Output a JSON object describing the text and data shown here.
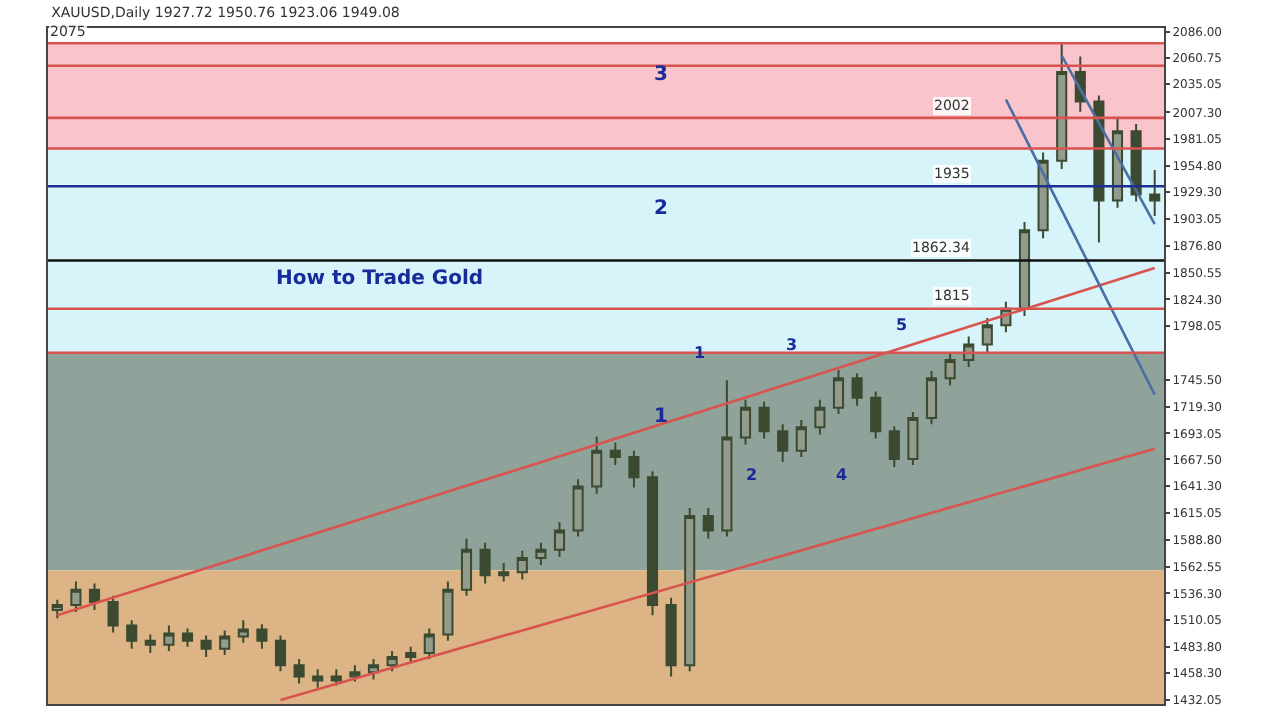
{
  "chart_data": {
    "type": "candlestick",
    "title": "XAUUSD,Daily 1927.72 1950.76 1923.06 1949.08",
    "categories": [
      null,
      null,
      null,
      null,
      null,
      null,
      null,
      null,
      null,
      null,
      null,
      null,
      null,
      null,
      null,
      null,
      null,
      null,
      null,
      null,
      null,
      null,
      null,
      null,
      null,
      null,
      null,
      null,
      null,
      null,
      null,
      null,
      null,
      null,
      null,
      null,
      null,
      null,
      null,
      null,
      null,
      null,
      null,
      null,
      null,
      null,
      null,
      null,
      null,
      null,
      null,
      null,
      null,
      null,
      null,
      null,
      null,
      null,
      null,
      null
    ],
    "ohlc": [
      [
        1520,
        1530,
        1512,
        1525
      ],
      [
        1525,
        1548,
        1518,
        1540
      ],
      [
        1540,
        1546,
        1520,
        1528
      ],
      [
        1528,
        1534,
        1498,
        1505
      ],
      [
        1505,
        1510,
        1482,
        1490
      ],
      [
        1490,
        1496,
        1478,
        1486
      ],
      [
        1486,
        1505,
        1480,
        1497
      ],
      [
        1497,
        1502,
        1484,
        1490
      ],
      [
        1490,
        1495,
        1474,
        1482
      ],
      [
        1482,
        1500,
        1476,
        1494
      ],
      [
        1494,
        1510,
        1488,
        1501
      ],
      [
        1501,
        1506,
        1482,
        1490
      ],
      [
        1490,
        1495,
        1460,
        1466
      ],
      [
        1466,
        1472,
        1448,
        1455
      ],
      [
        1455,
        1462,
        1444,
        1451
      ],
      [
        1451,
        1462,
        1446,
        1455
      ],
      [
        1455,
        1466,
        1450,
        1459
      ],
      [
        1459,
        1472,
        1452,
        1466
      ],
      [
        1466,
        1480,
        1460,
        1474
      ],
      [
        1474,
        1484,
        1468,
        1478
      ],
      [
        1478,
        1502,
        1472,
        1496
      ],
      [
        1496,
        1548,
        1490,
        1540
      ],
      [
        1540,
        1590,
        1534,
        1579
      ],
      [
        1579,
        1586,
        1546,
        1554
      ],
      [
        1554,
        1566,
        1548,
        1557
      ],
      [
        1557,
        1578,
        1550,
        1571
      ],
      [
        1571,
        1586,
        1564,
        1579
      ],
      [
        1579,
        1606,
        1572,
        1598
      ],
      [
        1598,
        1648,
        1592,
        1641
      ],
      [
        1641,
        1690,
        1634,
        1676
      ],
      [
        1676,
        1684,
        1662,
        1670
      ],
      [
        1670,
        1676,
        1640,
        1650
      ],
      [
        1650,
        1656,
        1515,
        1525
      ],
      [
        1525,
        1532,
        1455,
        1466
      ],
      [
        1466,
        1620,
        1460,
        1612
      ],
      [
        1612,
        1620,
        1590,
        1598
      ],
      [
        1598,
        1745,
        1592,
        1689
      ],
      [
        1689,
        1726,
        1682,
        1718
      ],
      [
        1718,
        1724,
        1688,
        1695
      ],
      [
        1695,
        1702,
        1665,
        1676
      ],
      [
        1676,
        1706,
        1670,
        1699
      ],
      [
        1699,
        1726,
        1692,
        1718
      ],
      [
        1718,
        1755,
        1712,
        1747
      ],
      [
        1747,
        1752,
        1720,
        1728
      ],
      [
        1728,
        1734,
        1688,
        1695
      ],
      [
        1695,
        1700,
        1660,
        1668
      ],
      [
        1668,
        1714,
        1662,
        1708
      ],
      [
        1708,
        1754,
        1702,
        1747
      ],
      [
        1747,
        1772,
        1740,
        1765
      ],
      [
        1765,
        1788,
        1758,
        1780
      ],
      [
        1780,
        1806,
        1772,
        1799
      ],
      [
        1799,
        1822,
        1792,
        1815
      ],
      [
        1815,
        1900,
        1808,
        1892
      ],
      [
        1892,
        1968,
        1884,
        1960
      ],
      [
        1960,
        2075,
        1952,
        2047
      ],
      [
        2047,
        2062,
        2008,
        2018
      ],
      [
        2018,
        2024,
        1880,
        1921
      ],
      [
        1921,
        2002,
        1914,
        1989
      ],
      [
        1989,
        1996,
        1920,
        1927
      ],
      [
        1927,
        1951,
        1906,
        1921
      ]
    ],
    "color": "#3b4a30",
    "series": [
      {
        "type": "line",
        "values": [
          1515,
          null,
          null,
          null,
          null,
          null,
          null,
          null,
          null,
          null,
          null,
          null,
          null,
          null,
          null,
          null,
          null,
          null,
          null,
          null,
          null,
          null,
          null,
          null,
          null,
          null,
          null,
          null,
          null,
          null,
          null,
          null,
          null,
          null,
          null,
          null,
          null,
          null,
          null,
          null,
          null,
          null,
          null,
          null,
          null,
          null,
          null,
          null,
          null,
          null,
          null,
          null,
          null,
          null,
          null,
          null,
          null,
          null,
          null,
          1855
        ],
        "color": "#d9534f"
      },
      {
        "type": "line",
        "values": [
          null,
          null,
          null,
          null,
          null,
          null,
          null,
          null,
          null,
          null,
          null,
          null,
          1432,
          null,
          null,
          null,
          null,
          null,
          null,
          null,
          null,
          null,
          null,
          null,
          null,
          null,
          null,
          null,
          null,
          null,
          null,
          null,
          null,
          null,
          null,
          null,
          null,
          null,
          null,
          null,
          null,
          null,
          null,
          null,
          null,
          null,
          null,
          null,
          null,
          null,
          null,
          null,
          null,
          null,
          null,
          null,
          null,
          null,
          null,
          1678
        ],
        "color": "#d9534f"
      },
      {
        "type": "line",
        "values": [
          null,
          null,
          null,
          null,
          null,
          null,
          null,
          null,
          null,
          null,
          null,
          null,
          null,
          null,
          null,
          null,
          null,
          null,
          null,
          null,
          null,
          null,
          null,
          null,
          null,
          null,
          null,
          null,
          null,
          null,
          null,
          null,
          null,
          null,
          null,
          null,
          null,
          null,
          null,
          null,
          null,
          null,
          null,
          null,
          null,
          null,
          null,
          null,
          null,
          null,
          null,
          2020,
          null,
          null,
          null,
          null,
          null,
          null,
          null,
          1731
        ],
        "color": "#4a6fa5"
      },
      {
        "type": "line",
        "values": [
          null,
          null,
          null,
          null,
          null,
          null,
          null,
          null,
          null,
          null,
          null,
          null,
          null,
          null,
          null,
          null,
          null,
          null,
          null,
          null,
          null,
          null,
          null,
          null,
          null,
          null,
          null,
          null,
          null,
          null,
          null,
          null,
          null,
          null,
          null,
          null,
          null,
          null,
          null,
          null,
          null,
          null,
          null,
          null,
          null,
          null,
          null,
          null,
          null,
          null,
          null,
          null,
          null,
          null,
          2063,
          null,
          null,
          null,
          null,
          1898
        ],
        "color": "#4a6fa5"
      }
    ],
    "ylim": [
      1428,
      2090
    ],
    "yticks": [
      {
        "value": 2086,
        "label": "2086.00"
      },
      {
        "value": 2060.75,
        "label": "2060.75"
      },
      {
        "value": 2035.05,
        "label": "2035.05"
      },
      {
        "value": 2007.3,
        "label": "2007.30"
      },
      {
        "value": 1981.05,
        "label": "1981.05"
      },
      {
        "value": 1954.8,
        "label": "1954.80"
      },
      {
        "value": 1929.3,
        "label": "1929.30"
      },
      {
        "value": 1903.05,
        "label": "1903.05"
      },
      {
        "value": 1876.8,
        "label": "1876.80"
      },
      {
        "value": 1850.55,
        "label": "1850.55"
      },
      {
        "value": 1824.3,
        "label": "1824.30"
      },
      {
        "value": 1798.05,
        "label": "1798.05"
      },
      {
        "value": 1745.5,
        "label": "1745.50"
      },
      {
        "value": 1719.3,
        "label": "1719.30"
      },
      {
        "value": 1693.05,
        "label": "1693.05"
      },
      {
        "value": 1667.5,
        "label": "1667.50"
      },
      {
        "value": 1641.3,
        "label": "1641.30"
      },
      {
        "value": 1615.05,
        "label": "1615.05"
      },
      {
        "value": 1588.8,
        "label": "1588.80"
      },
      {
        "value": 1562.55,
        "label": "1562.55"
      },
      {
        "value": 1536.3,
        "label": "1536.30"
      },
      {
        "value": 1510.05,
        "label": "1510.05"
      },
      {
        "value": 1483.8,
        "label": "1483.80"
      },
      {
        "value": 1458.3,
        "label": "1458.30"
      },
      {
        "value": 1432.05,
        "label": "1432.05"
      }
    ],
    "tick_labels": "y",
    "bands": [
      {
        "axis": "y",
        "from": 1972,
        "to": 2074,
        "color": "#f9c4cb",
        "label": "3"
      },
      {
        "axis": "y",
        "from": 1772,
        "to": 1972,
        "color": "#d6f4fa",
        "label": "2"
      },
      {
        "axis": "y",
        "from": 1559,
        "to": 1772,
        "color": "#8fa39a",
        "label": "1"
      },
      {
        "axis": "y",
        "from": 1428,
        "to": 1559,
        "color": "#ddb485"
      }
    ],
    "ref_lines": [
      {
        "axis": "y",
        "value": 2075,
        "label": "2075",
        "color": "#d9534f"
      },
      {
        "axis": "y",
        "value": 2053,
        "color": "#d9534f"
      },
      {
        "axis": "y",
        "value": 2002,
        "label": "2002",
        "color": "#d9534f"
      },
      {
        "axis": "y",
        "value": 1972,
        "color": "#d9534f"
      },
      {
        "axis": "y",
        "value": 1935,
        "label": "1935",
        "color": "#1f2f8f"
      },
      {
        "axis": "y",
        "value": 1862.34,
        "label": "1862.34",
        "color": "#111111"
      },
      {
        "axis": "y",
        "value": 1815,
        "label": "1815",
        "color": "#d9534f"
      },
      {
        "axis": "y",
        "value": 1772,
        "color": "#d9534f"
      }
    ],
    "annotations": [
      "How to Trade Gold",
      "1",
      "2",
      "3",
      "4",
      "5"
    ]
  }
}
